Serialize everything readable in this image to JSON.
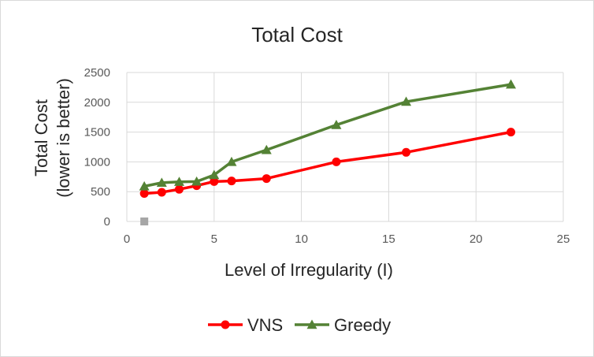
{
  "chart_data": {
    "type": "scatter",
    "title": "Total Cost",
    "xlabel": "Level of Irregularity (I)",
    "ylabel_lines": [
      "Total Cost",
      "(lower is better)"
    ],
    "xlim": [
      0,
      25
    ],
    "ylim": [
      0,
      2500
    ],
    "x_ticks": [
      "0",
      "5",
      "10",
      "15",
      "20",
      "25"
    ],
    "y_ticks": [
      "0",
      "500",
      "1000",
      "1500",
      "2000",
      "2500"
    ],
    "grid": true,
    "legend_position": "bottom",
    "series": [
      {
        "name": "VNS",
        "color": "#ff0000",
        "marker": "circle",
        "points": [
          [
            1,
            470
          ],
          [
            2,
            490
          ],
          [
            3,
            540
          ],
          [
            4,
            600
          ],
          [
            5,
            670
          ],
          [
            6,
            680
          ],
          [
            8,
            720
          ],
          [
            12,
            1000
          ],
          [
            16,
            1160
          ],
          [
            22,
            1500
          ]
        ]
      },
      {
        "name": "Greedy",
        "color": "#548235",
        "marker": "triangle",
        "points": [
          [
            1,
            590
          ],
          [
            2,
            650
          ],
          [
            3,
            665
          ],
          [
            4,
            670
          ],
          [
            5,
            780
          ],
          [
            6,
            1000
          ],
          [
            8,
            1200
          ],
          [
            12,
            1620
          ],
          [
            16,
            2010
          ],
          [
            22,
            2300
          ]
        ]
      },
      {
        "name": "",
        "color": "#a6a6a6",
        "marker": "square",
        "points": [
          [
            1,
            0
          ]
        ]
      }
    ]
  }
}
